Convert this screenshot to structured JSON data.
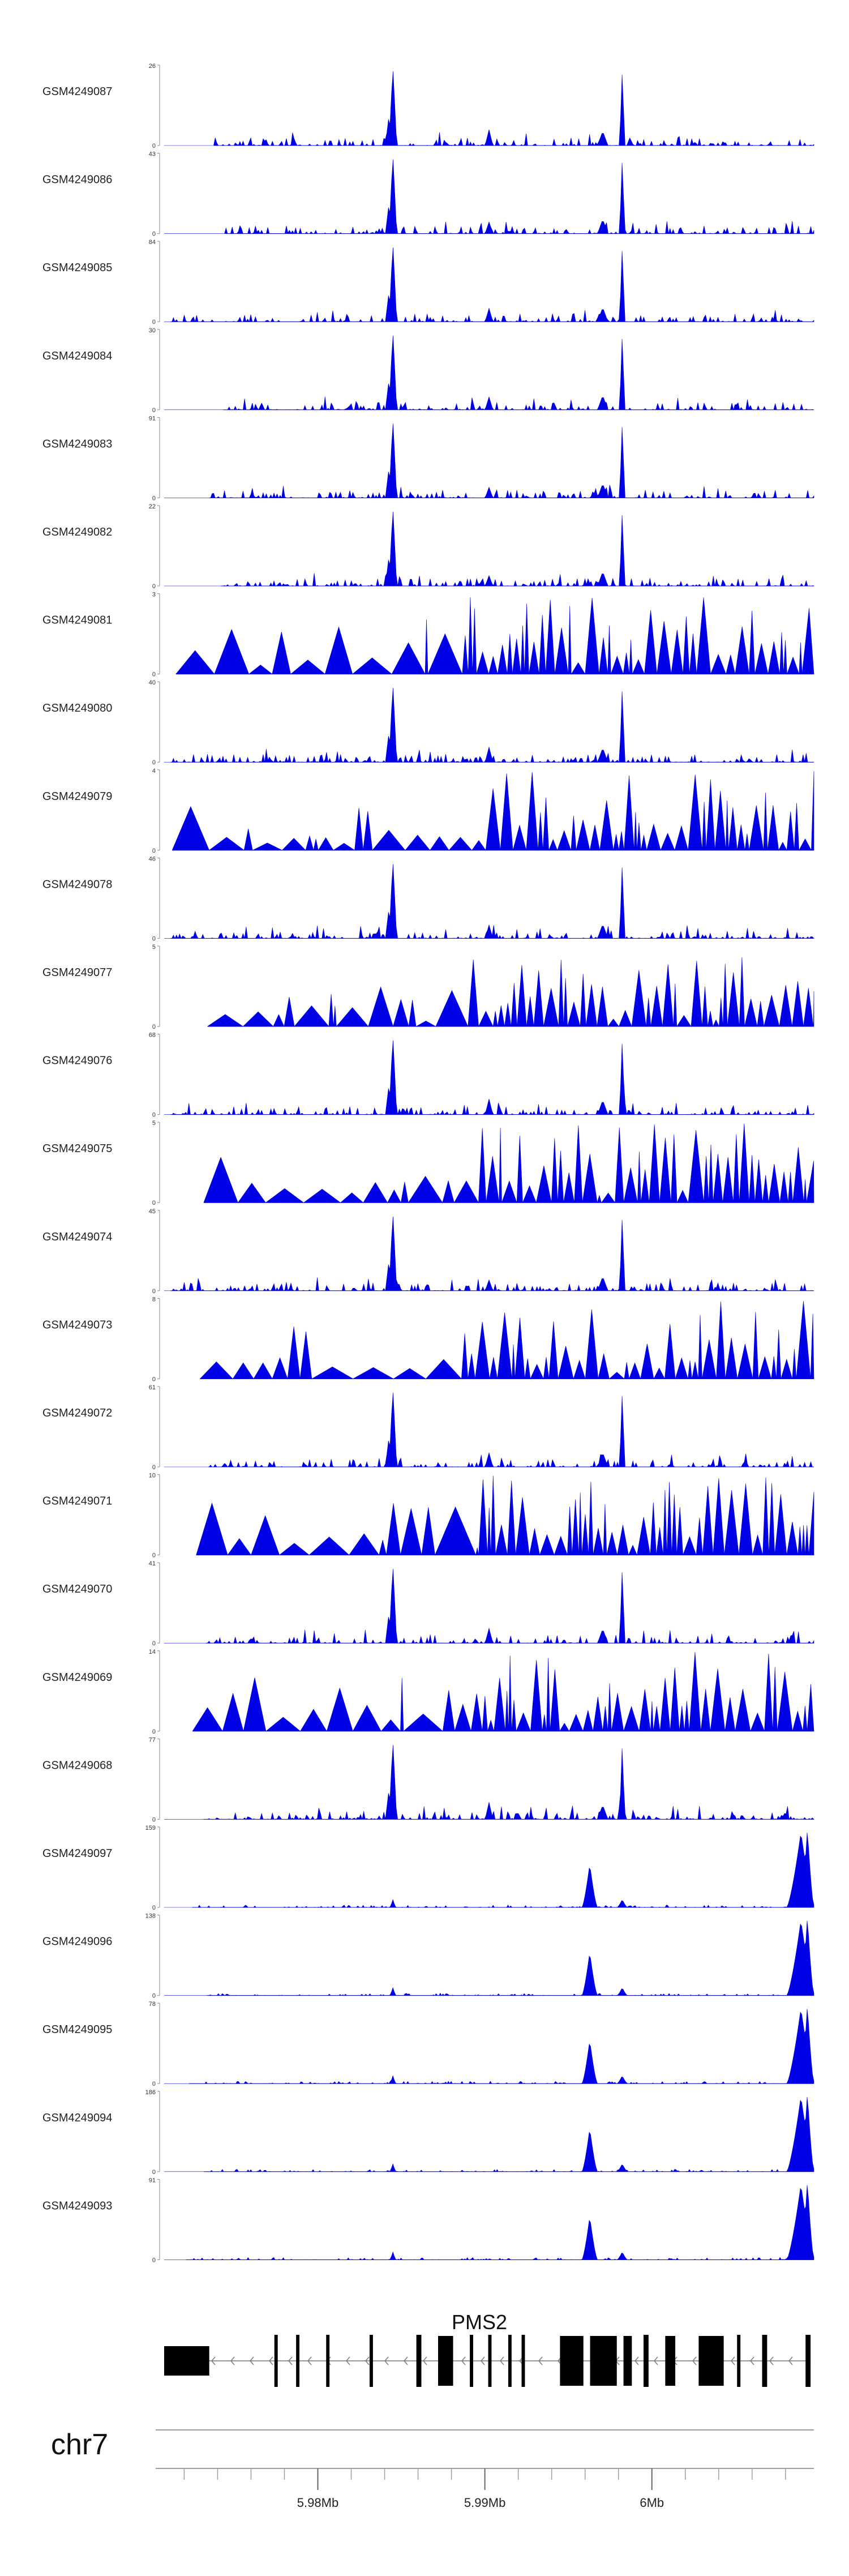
{
  "tracks": [
    {
      "label": "GSM4249087",
      "ymax": "26",
      "ymin": "0",
      "kind": "A",
      "seed": 1
    },
    {
      "label": "GSM4249086",
      "ymax": "43",
      "ymin": "0",
      "kind": "A",
      "seed": 2
    },
    {
      "label": "GSM4249085",
      "ymax": "84",
      "ymin": "0",
      "kind": "A",
      "seed": 3
    },
    {
      "label": "GSM4249084",
      "ymax": "30",
      "ymin": "0",
      "kind": "A",
      "seed": 4
    },
    {
      "label": "GSM4249083",
      "ymax": "91",
      "ymin": "0",
      "kind": "A",
      "seed": 5
    },
    {
      "label": "GSM4249082",
      "ymax": "22",
      "ymin": "0",
      "kind": "A",
      "seed": 6
    },
    {
      "label": "GSM4249081",
      "ymax": "3",
      "ymin": "0",
      "kind": "B",
      "seed": 7
    },
    {
      "label": "GSM4249080",
      "ymax": "40",
      "ymin": "0",
      "kind": "A",
      "seed": 8
    },
    {
      "label": "GSM4249079",
      "ymax": "4",
      "ymin": "0",
      "kind": "B",
      "seed": 9
    },
    {
      "label": "GSM4249078",
      "ymax": "46",
      "ymin": "0",
      "kind": "A",
      "seed": 10
    },
    {
      "label": "GSM4249077",
      "ymax": "5",
      "ymin": "0",
      "kind": "B",
      "seed": 11
    },
    {
      "label": "GSM4249076",
      "ymax": "68",
      "ymin": "0",
      "kind": "A",
      "seed": 12
    },
    {
      "label": "GSM4249075",
      "ymax": "5",
      "ymin": "0",
      "kind": "B",
      "seed": 13
    },
    {
      "label": "GSM4249074",
      "ymax": "45",
      "ymin": "0",
      "kind": "A",
      "seed": 14
    },
    {
      "label": "GSM4249073",
      "ymax": "8",
      "ymin": "0",
      "kind": "B",
      "seed": 15
    },
    {
      "label": "GSM4249072",
      "ymax": "61",
      "ymin": "0",
      "kind": "A",
      "seed": 16
    },
    {
      "label": "GSM4249071",
      "ymax": "10",
      "ymin": "0",
      "kind": "B",
      "seed": 17
    },
    {
      "label": "GSM4249070",
      "ymax": "41",
      "ymin": "0",
      "kind": "A",
      "seed": 18
    },
    {
      "label": "GSM4249069",
      "ymax": "14",
      "ymin": "0",
      "kind": "B",
      "seed": 19
    },
    {
      "label": "GSM4249068",
      "ymax": "77",
      "ymin": "0",
      "kind": "A",
      "seed": 20
    },
    {
      "label": "GSM4249097",
      "ymax": "159",
      "ymin": "0",
      "kind": "C",
      "seed": 21
    },
    {
      "label": "GSM4249096",
      "ymax": "138",
      "ymin": "0",
      "kind": "C",
      "seed": 22
    },
    {
      "label": "GSM4249095",
      "ymax": "78",
      "ymin": "0",
      "kind": "C",
      "seed": 23
    },
    {
      "label": "GSM4249094",
      "ymax": "186",
      "ymin": "0",
      "kind": "C",
      "seed": 24
    },
    {
      "label": "GSM4249093",
      "ymax": "91",
      "ymin": "0",
      "kind": "C",
      "seed": 25
    }
  ],
  "gene": {
    "name": "PMS2",
    "strand": "-",
    "exons_mb": [
      [
        5.9708,
        5.9735
      ],
      [
        5.9774,
        5.9776
      ],
      [
        5.9787,
        5.9789
      ],
      [
        5.9805,
        5.9807
      ],
      [
        5.9831,
        5.9833
      ],
      [
        5.9859,
        5.9862
      ],
      [
        5.9872,
        5.9881
      ],
      [
        5.9891,
        5.9893
      ],
      [
        5.9902,
        5.9904
      ],
      [
        5.9914,
        5.9916
      ],
      [
        5.9922,
        5.9924
      ],
      [
        5.9945,
        5.9959
      ],
      [
        5.9963,
        5.9979
      ],
      [
        5.9983,
        5.9988
      ],
      [
        5.9995,
        5.9998
      ],
      [
        6.0008,
        6.0014
      ],
      [
        6.0028,
        6.0043
      ],
      [
        6.0051,
        6.0053
      ],
      [
        6.0066,
        6.0069
      ],
      [
        6.0092,
        6.0095
      ]
    ]
  },
  "axis": {
    "chromosome": "chr7",
    "range_mb": [
      5.9708,
      6.0097
    ],
    "ticks": [
      {
        "mb": 5.98,
        "label": "5.98Mb"
      },
      {
        "mb": 5.99,
        "label": "5.99Mb"
      },
      {
        "mb": 6.0,
        "label": "6Mb"
      }
    ],
    "minor_ticks_mb": [
      5.972,
      5.974,
      5.976,
      5.978,
      5.98,
      5.982,
      5.984,
      5.986,
      5.988,
      5.99,
      5.992,
      5.994,
      5.996,
      5.998,
      6.0,
      6.002,
      6.004,
      6.006,
      6.008
    ]
  },
  "colors": {
    "signal": "#0000e6",
    "gene": "#000000",
    "axis": "#9e9e9e"
  }
}
